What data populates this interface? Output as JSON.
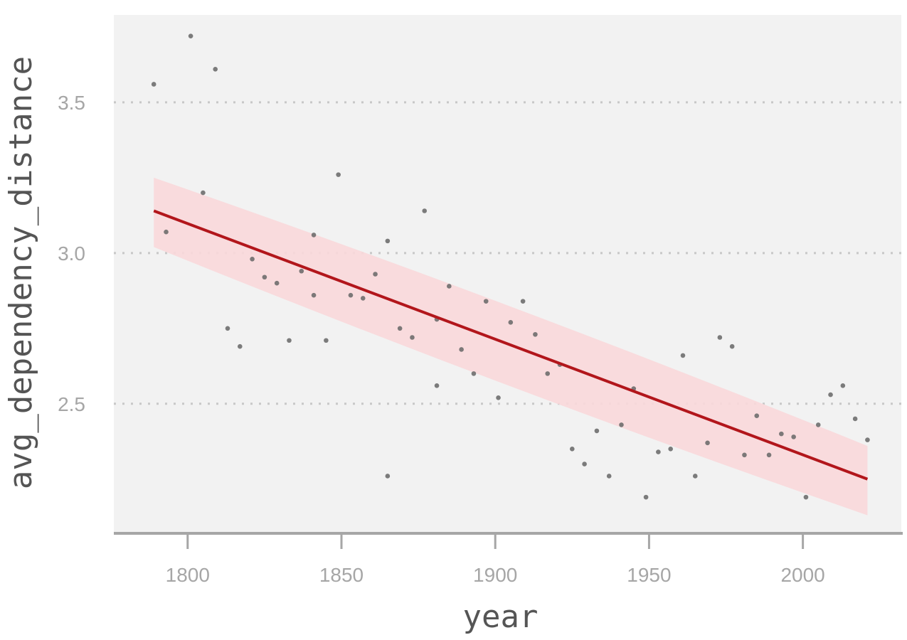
{
  "chart_data": {
    "type": "scatter",
    "xlabel": "year",
    "ylabel": "avg_dependency_distance",
    "xlim": [
      1776,
      2032
    ],
    "ylim": [
      2.07,
      3.79
    ],
    "x_ticks": [
      1800,
      1850,
      1900,
      1950,
      2000
    ],
    "y_ticks": [
      2.5,
      3.0,
      3.5
    ],
    "x_tick_labels": [
      "1800",
      "1850",
      "1900",
      "1950",
      "2000"
    ],
    "y_tick_labels": [
      "2.5",
      "3.0",
      "3.5"
    ],
    "grid": "horizontal dotted",
    "colors": {
      "panel": "#f2f2f2",
      "points": "#666666",
      "trend_line": "#b2161b",
      "confidence_band": "#f9d8da",
      "grid": "#c8c8c8",
      "axis": "#a6a6a6"
    },
    "points": [
      {
        "x": 1789,
        "y": 3.56
      },
      {
        "x": 1793,
        "y": 3.07
      },
      {
        "x": 1801,
        "y": 3.72
      },
      {
        "x": 1805,
        "y": 3.2
      },
      {
        "x": 1809,
        "y": 3.61
      },
      {
        "x": 1813,
        "y": 2.75
      },
      {
        "x": 1817,
        "y": 2.69
      },
      {
        "x": 1821,
        "y": 2.98
      },
      {
        "x": 1825,
        "y": 2.92
      },
      {
        "x": 1829,
        "y": 2.9
      },
      {
        "x": 1833,
        "y": 2.71
      },
      {
        "x": 1837,
        "y": 2.94
      },
      {
        "x": 1841,
        "y": 3.06
      },
      {
        "x": 1841,
        "y": 2.86
      },
      {
        "x": 1845,
        "y": 2.71
      },
      {
        "x": 1849,
        "y": 3.26
      },
      {
        "x": 1853,
        "y": 2.86
      },
      {
        "x": 1857,
        "y": 2.85
      },
      {
        "x": 1861,
        "y": 2.93
      },
      {
        "x": 1865,
        "y": 3.04
      },
      {
        "x": 1865,
        "y": 2.26
      },
      {
        "x": 1869,
        "y": 2.75
      },
      {
        "x": 1873,
        "y": 2.72
      },
      {
        "x": 1877,
        "y": 3.14
      },
      {
        "x": 1881,
        "y": 2.56
      },
      {
        "x": 1881,
        "y": 2.78
      },
      {
        "x": 1885,
        "y": 2.89
      },
      {
        "x": 1889,
        "y": 2.68
      },
      {
        "x": 1893,
        "y": 2.6
      },
      {
        "x": 1897,
        "y": 2.84
      },
      {
        "x": 1901,
        "y": 2.52
      },
      {
        "x": 1905,
        "y": 2.77
      },
      {
        "x": 1909,
        "y": 2.84
      },
      {
        "x": 1913,
        "y": 2.73
      },
      {
        "x": 1917,
        "y": 2.6
      },
      {
        "x": 1921,
        "y": 2.63
      },
      {
        "x": 1925,
        "y": 2.35
      },
      {
        "x": 1929,
        "y": 2.3
      },
      {
        "x": 1933,
        "y": 2.41
      },
      {
        "x": 1937,
        "y": 2.26
      },
      {
        "x": 1941,
        "y": 2.43
      },
      {
        "x": 1945,
        "y": 2.55
      },
      {
        "x": 1949,
        "y": 2.19
      },
      {
        "x": 1953,
        "y": 2.34
      },
      {
        "x": 1957,
        "y": 2.35
      },
      {
        "x": 1961,
        "y": 2.66
      },
      {
        "x": 1965,
        "y": 2.26
      },
      {
        "x": 1969,
        "y": 2.37
      },
      {
        "x": 1973,
        "y": 2.72
      },
      {
        "x": 1977,
        "y": 2.69
      },
      {
        "x": 1981,
        "y": 2.33
      },
      {
        "x": 1985,
        "y": 2.46
      },
      {
        "x": 1989,
        "y": 2.33
      },
      {
        "x": 1993,
        "y": 2.4
      },
      {
        "x": 1997,
        "y": 2.39
      },
      {
        "x": 2001,
        "y": 2.19
      },
      {
        "x": 2005,
        "y": 2.43
      },
      {
        "x": 2009,
        "y": 2.53
      },
      {
        "x": 2013,
        "y": 2.56
      },
      {
        "x": 2017,
        "y": 2.45
      },
      {
        "x": 2021,
        "y": 2.38
      }
    ],
    "trend": {
      "method": "linear",
      "x": [
        1789,
        2021
      ],
      "y": [
        3.14,
        2.25
      ],
      "ci_lower": [
        3.02,
        2.13
      ],
      "ci_upper": [
        3.25,
        2.36
      ],
      "ci_mid_x": 1905
    }
  }
}
